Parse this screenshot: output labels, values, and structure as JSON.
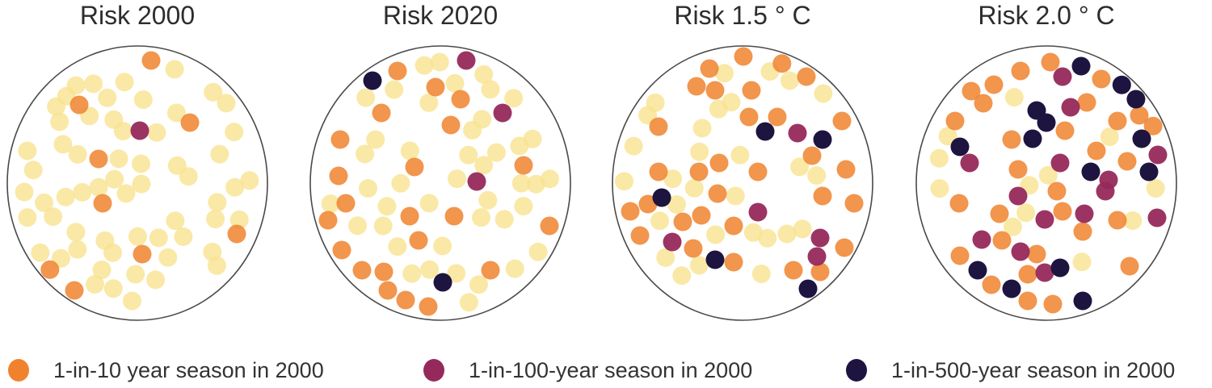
{
  "figure": {
    "background": "#ffffff",
    "title_color": "#2d2d2d",
    "legend_text_color": "#333333",
    "circle_outline_color": "#4a4a4a"
  },
  "chart_data": {
    "type": "scatter",
    "subtype": "dot-density-circle-panels",
    "legend_position": "bottom",
    "total_dots_per_panel": 70,
    "base_category": {
      "key": "common",
      "color": "#F9E290",
      "opacity": 0.8
    },
    "categories": [
      {
        "key": "p10",
        "label": "1-in-10 year season in 2000",
        "color": "#F0822E",
        "opacity": 0.85
      },
      {
        "key": "p100",
        "label": "1-in-100-year season in 2000",
        "color": "#96295B",
        "opacity": 0.95
      },
      {
        "key": "p500",
        "label": "1-in-500-year season in 2000",
        "color": "#1E1440",
        "opacity": 1
      }
    ],
    "panels": [
      {
        "title": "Risk 2000",
        "counts": {
          "common": 60,
          "p10": 9,
          "p100": 1,
          "p500": 0
        },
        "dots": {
          "p10": [
            [
              187,
              25
            ],
            [
              98,
              80
            ],
            [
              235,
              102
            ],
            [
              122,
              147
            ],
            [
              127,
              202
            ],
            [
              293,
              240
            ],
            [
              176,
              265
            ],
            [
              61,
              285
            ],
            [
              92,
              310
            ]
          ],
          "p100": [
            [
              173,
              112
            ]
          ],
          "p500": []
        }
      },
      {
        "title": "Risk 2020",
        "counts": {
          "common": 43,
          "p10": 22,
          "p100": 3,
          "p500": 2
        },
        "dots": {
          "p10": [
            [
              117,
              38
            ],
            [
              164,
              58
            ],
            [
              195,
              73
            ],
            [
              97,
              90
            ],
            [
              183,
              105
            ],
            [
              46,
              123
            ],
            [
              138,
              157
            ],
            [
              44,
              168
            ],
            [
              273,
              155
            ],
            [
              53,
              202
            ],
            [
              31,
              223
            ],
            [
              132,
              218
            ],
            [
              187,
              218
            ],
            [
              143,
              248
            ],
            [
              305,
              230
            ],
            [
              48,
              260
            ],
            [
              73,
              285
            ],
            [
              100,
              287
            ],
            [
              232,
              285
            ],
            [
              105,
              310
            ],
            [
              127,
              322
            ],
            [
              155,
              330
            ]
          ],
          "p100": [
            [
              202,
              25
            ],
            [
              247,
              90
            ],
            [
              215,
              175
            ]
          ],
          "p500": [
            [
              86,
              50
            ],
            [
              173,
              300
            ]
          ]
        }
      },
      {
        "title": "Risk 1.5 ° C",
        "counts": {
          "common": 29,
          "p10": 31,
          "p100": 5,
          "p500": 5
        },
        "dots": {
          "p10": [
            [
              171,
              20
            ],
            [
              220,
              25
            ],
            [
              129,
              35
            ],
            [
              113,
              57
            ],
            [
              136,
              62
            ],
            [
              249,
              45
            ],
            [
              181,
              62
            ],
            [
              66,
              107
            ],
            [
              178,
              95
            ],
            [
              213,
              95
            ],
            [
              293,
              100
            ],
            [
              256,
              143
            ],
            [
              66,
              163
            ],
            [
              116,
              163
            ],
            [
              141,
              152
            ],
            [
              189,
              163
            ],
            [
              298,
              160
            ],
            [
              31,
              212
            ],
            [
              53,
              203
            ],
            [
              139,
              190
            ],
            [
              96,
              225
            ],
            [
              119,
              217
            ],
            [
              43,
              242
            ],
            [
              159,
              230
            ],
            [
              109,
              258
            ],
            [
              269,
              193
            ],
            [
              308,
              202
            ],
            [
              296,
              257
            ],
            [
              159,
              275
            ],
            [
              233,
              285
            ],
            [
              266,
              287
            ]
          ],
          "p100": [
            [
              238,
              115
            ],
            [
              189,
              213
            ],
            [
              83,
              250
            ],
            [
              266,
              245
            ],
            [
              262,
              268
            ]
          ],
          "p500": [
            [
              198,
              113
            ],
            [
              269,
              123
            ],
            [
              70,
              195
            ],
            [
              136,
              272
            ],
            [
              251,
              308
            ]
          ]
        }
      },
      {
        "title": "Risk 2.0 ° C",
        "counts": {
          "common": 12,
          "p10": 30,
          "p100": 14,
          "p500": 14
        },
        "dots": {
          "p10": [
            [
              175,
              27
            ],
            [
              138,
              38
            ],
            [
              238,
              48
            ],
            [
              105,
              55
            ],
            [
              77,
              63
            ],
            [
              220,
              77
            ],
            [
              92,
              78
            ],
            [
              285,
              93
            ],
            [
              258,
              100
            ],
            [
              57,
              100
            ],
            [
              308,
              103
            ],
            [
              127,
              123
            ],
            [
              193,
              112
            ],
            [
              232,
              137
            ],
            [
              270,
              150
            ],
            [
              135,
              160
            ],
            [
              62,
              202
            ],
            [
              112,
              215
            ],
            [
              183,
              187
            ],
            [
              190,
              212
            ],
            [
              215,
              237
            ],
            [
              258,
              223
            ],
            [
              115,
              248
            ],
            [
              158,
              265
            ],
            [
              63,
              267
            ],
            [
              147,
              290
            ],
            [
              102,
              303
            ],
            [
              147,
              323
            ],
            [
              178,
              327
            ],
            [
              273,
              280
            ]
          ],
          "p100": [
            [
              190,
              45
            ],
            [
              200,
              83
            ],
            [
              75,
              152
            ],
            [
              187,
              152
            ],
            [
              308,
              142
            ],
            [
              247,
              173
            ],
            [
              135,
              193
            ],
            [
              243,
              187
            ],
            [
              168,
              222
            ],
            [
              217,
              215
            ],
            [
              307,
              220
            ],
            [
              90,
              247
            ],
            [
              138,
              262
            ],
            [
              168,
              288
            ]
          ],
          "p500": [
            [
              213,
              32
            ],
            [
              265,
              53
            ],
            [
              282,
              72
            ],
            [
              158,
              87
            ],
            [
              170,
              102
            ],
            [
              153,
              122
            ],
            [
              63,
              132
            ],
            [
              288,
              122
            ],
            [
              225,
              163
            ],
            [
              297,
              163
            ],
            [
              85,
              285
            ],
            [
              187,
              282
            ],
            [
              127,
              308
            ],
            [
              215,
              323
            ]
          ]
        }
      }
    ]
  }
}
